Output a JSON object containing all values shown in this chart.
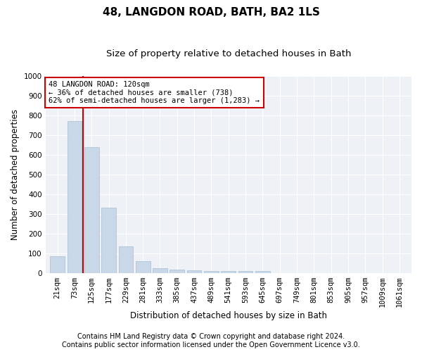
{
  "title": "48, LANGDON ROAD, BATH, BA2 1LS",
  "subtitle": "Size of property relative to detached houses in Bath",
  "xlabel": "Distribution of detached houses by size in Bath",
  "ylabel": "Number of detached properties",
  "categories": [
    "21sqm",
    "73sqm",
    "125sqm",
    "177sqm",
    "229sqm",
    "281sqm",
    "333sqm",
    "385sqm",
    "437sqm",
    "489sqm",
    "541sqm",
    "593sqm",
    "645sqm",
    "697sqm",
    "749sqm",
    "801sqm",
    "853sqm",
    "905sqm",
    "957sqm",
    "1009sqm",
    "1061sqm"
  ],
  "values": [
    85,
    770,
    640,
    330,
    135,
    60,
    25,
    18,
    12,
    10,
    10,
    10,
    10,
    0,
    0,
    0,
    0,
    0,
    0,
    0,
    0
  ],
  "bar_color": "#c8d8e8",
  "bar_edge_color": "#a8bece",
  "property_line_color": "#cc0000",
  "property_line_x": 1.5,
  "ylim": [
    0,
    1000
  ],
  "yticks": [
    0,
    100,
    200,
    300,
    400,
    500,
    600,
    700,
    800,
    900,
    1000
  ],
  "annotation_title": "48 LANGDON ROAD: 120sqm",
  "annotation_line1": "← 36% of detached houses are smaller (738)",
  "annotation_line2": "62% of semi-detached houses are larger (1,283) →",
  "annotation_box_color": "#cc0000",
  "annotation_box_facecolor": "#ffffff",
  "footnote1": "Contains HM Land Registry data © Crown copyright and database right 2024.",
  "footnote2": "Contains public sector information licensed under the Open Government Licence v3.0.",
  "background_color": "#eef2f7",
  "grid_color": "#ffffff",
  "title_fontsize": 11,
  "subtitle_fontsize": 9.5,
  "axis_label_fontsize": 8.5,
  "tick_fontsize": 7.5,
  "annotation_fontsize": 7.5,
  "footnote_fontsize": 7
}
